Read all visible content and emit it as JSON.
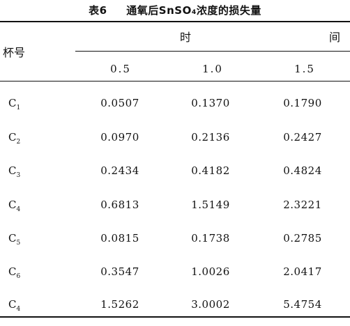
{
  "table": {
    "title_number": "表6",
    "title_text": "通氧后SnSO₄浓度的损失量",
    "header_cup": "杯号",
    "header_time_a": "时",
    "header_time_b": "间",
    "columns": [
      "0.5",
      "1.0",
      "1.5"
    ],
    "rows": [
      {
        "cup": "C",
        "sub": "1",
        "values": [
          "0.0507",
          "0.1370",
          "0.1790"
        ]
      },
      {
        "cup": "C",
        "sub": "2",
        "values": [
          "0.0970",
          "0.2136",
          "0.2427"
        ]
      },
      {
        "cup": "C",
        "sub": "3",
        "values": [
          "0.2434",
          "0.4182",
          "0.4824"
        ]
      },
      {
        "cup": "C",
        "sub": "4",
        "values": [
          "0.6813",
          "1.5149",
          "2.3221"
        ]
      },
      {
        "cup": "C",
        "sub": "5",
        "values": [
          "0.0815",
          "0.1738",
          "0.2785"
        ]
      },
      {
        "cup": "C",
        "sub": "6",
        "values": [
          "0.3547",
          "1.0026",
          "2.0417"
        ]
      },
      {
        "cup": "C",
        "sub": "4",
        "values": [
          "1.5262",
          "3.0002",
          "5.4754"
        ]
      }
    ]
  }
}
